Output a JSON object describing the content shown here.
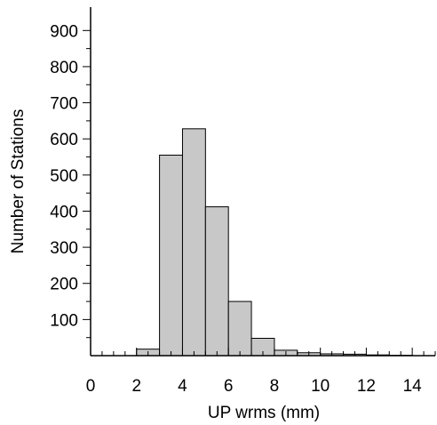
{
  "chart_data": {
    "type": "bar",
    "bin_edges": [
      0,
      1,
      2,
      3,
      4,
      5,
      6,
      7,
      8,
      9,
      10,
      11,
      12,
      13,
      14,
      15
    ],
    "values": [
      0,
      0,
      18,
      555,
      628,
      412,
      150,
      48,
      15,
      8,
      5,
      4,
      2,
      1,
      0
    ],
    "xlabel": "UP  wrms (mm)",
    "ylabel": "Number of Stations",
    "xlim": [
      0,
      15
    ],
    "ylim": [
      0,
      950
    ],
    "x_ticks": [
      "0",
      "2",
      "4",
      "6",
      "8",
      "10",
      "12",
      "14"
    ],
    "y_ticks": [
      "100",
      "200",
      "300",
      "400",
      "500",
      "600",
      "700",
      "800",
      "900"
    ],
    "bar_color": "#c8c8c8",
    "grid": false
  }
}
